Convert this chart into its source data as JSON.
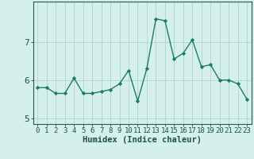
{
  "x": [
    0,
    1,
    2,
    3,
    4,
    5,
    6,
    7,
    8,
    9,
    10,
    11,
    12,
    13,
    14,
    15,
    16,
    17,
    18,
    19,
    20,
    21,
    22,
    23
  ],
  "y": [
    5.8,
    5.8,
    5.65,
    5.65,
    6.05,
    5.65,
    5.65,
    5.7,
    5.75,
    5.9,
    6.25,
    5.45,
    6.3,
    7.6,
    7.55,
    6.55,
    6.7,
    7.05,
    6.35,
    6.4,
    6.0,
    6.0,
    5.9,
    5.5
  ],
  "line_color": "#1a7a6e",
  "marker": "D",
  "markersize": 2.2,
  "linewidth": 1.0,
  "xlabel": "Humidex (Indice chaleur)",
  "xlim": [
    -0.5,
    23.5
  ],
  "ylim": [
    4.85,
    8.05
  ],
  "yticks": [
    5,
    6,
    7
  ],
  "xticks": [
    0,
    1,
    2,
    3,
    4,
    5,
    6,
    7,
    8,
    9,
    10,
    11,
    12,
    13,
    14,
    15,
    16,
    17,
    18,
    19,
    20,
    21,
    22,
    23
  ],
  "bg_color": "#d5f0eb",
  "grid_color": "#aed4cc",
  "axis_color": "#2a5550",
  "tick_label_color": "#1a5050",
  "xlabel_color": "#1a5050",
  "xlabel_fontsize": 7.5,
  "tick_fontsize": 6.5,
  "ytick_fontsize": 8.0
}
